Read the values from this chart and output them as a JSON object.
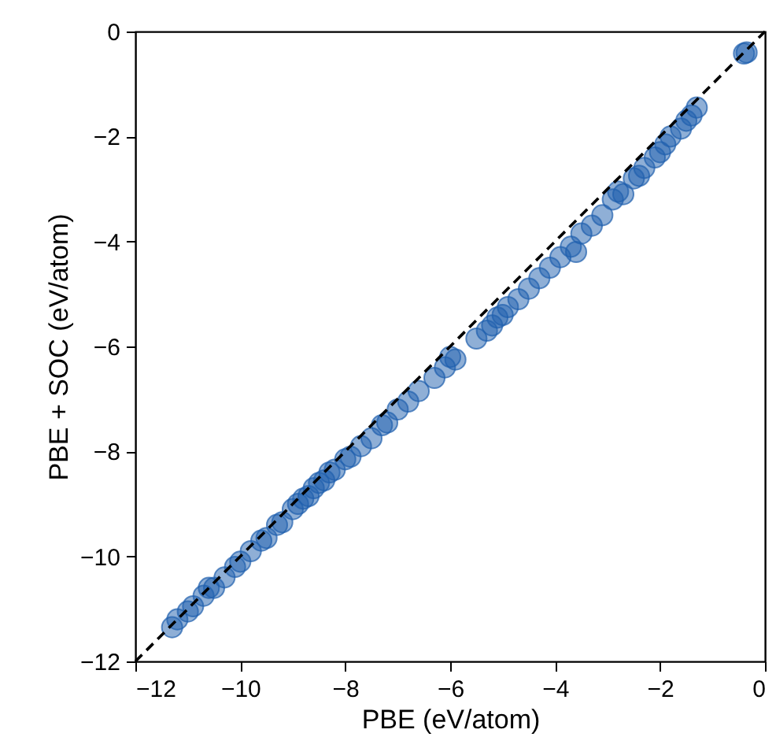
{
  "chart_data": {
    "type": "scatter",
    "xlabel": "PBE (eV/atom)",
    "ylabel": "PBE + SOC (eV/atom)",
    "xlim": [
      -12,
      0
    ],
    "ylim": [
      -12,
      0
    ],
    "xticks": [
      -12,
      -10,
      -8,
      -6,
      -4,
      -2,
      0
    ],
    "yticks": [
      -12,
      -10,
      -8,
      -6,
      -4,
      -2,
      0
    ],
    "grid": false,
    "marker": "circle",
    "series": [
      {
        "color": "#1f5fae",
        "x": [
          -11.3,
          -11.2,
          -11.0,
          -10.9,
          -10.7,
          -10.6,
          -10.5,
          -10.3,
          -10.1,
          -10.0,
          -9.8,
          -9.6,
          -9.5,
          -9.3,
          -9.2,
          -9.0,
          -8.9,
          -8.8,
          -8.7,
          -8.6,
          -8.5,
          -8.4,
          -8.3,
          -8.2,
          -8.0,
          -7.9,
          -7.7,
          -7.5,
          -7.3,
          -7.2,
          -7.0,
          -6.8,
          -6.6,
          -6.3,
          -6.1,
          -6.0,
          -5.9,
          -5.5,
          -5.3,
          -5.2,
          -5.1,
          -5.0,
          -4.9,
          -4.7,
          -4.5,
          -4.3,
          -4.1,
          -3.9,
          -3.7,
          -3.6,
          -3.5,
          -3.3,
          -3.1,
          -2.9,
          -2.8,
          -2.7,
          -2.5,
          -2.4,
          -2.3,
          -2.1,
          -2.0,
          -1.9,
          -1.8,
          -1.6,
          -1.5,
          -1.4,
          -1.3,
          -0.4,
          -0.35
        ],
        "values": [
          -11.35,
          -11.2,
          -11.05,
          -10.95,
          -10.75,
          -10.6,
          -10.6,
          -10.4,
          -10.2,
          -10.1,
          -9.9,
          -9.7,
          -9.65,
          -9.4,
          -9.35,
          -9.1,
          -9.0,
          -8.9,
          -8.85,
          -8.7,
          -8.6,
          -8.55,
          -8.4,
          -8.35,
          -8.15,
          -8.1,
          -7.9,
          -7.75,
          -7.5,
          -7.45,
          -7.2,
          -7.05,
          -6.85,
          -6.6,
          -6.4,
          -6.2,
          -6.25,
          -5.85,
          -5.7,
          -5.6,
          -5.45,
          -5.4,
          -5.25,
          -5.1,
          -4.9,
          -4.7,
          -4.5,
          -4.3,
          -4.1,
          -4.2,
          -3.85,
          -3.7,
          -3.5,
          -3.2,
          -3.05,
          -3.1,
          -2.8,
          -2.75,
          -2.6,
          -2.4,
          -2.3,
          -2.15,
          -2.0,
          -1.85,
          -1.7,
          -1.6,
          -1.45,
          -0.42,
          -0.4
        ]
      },
      {
        "type": "line",
        "color": "#000000",
        "line_style": "dashed",
        "marker": "none",
        "x": [
          -12,
          0
        ],
        "values": [
          -12,
          0
        ]
      }
    ]
  }
}
